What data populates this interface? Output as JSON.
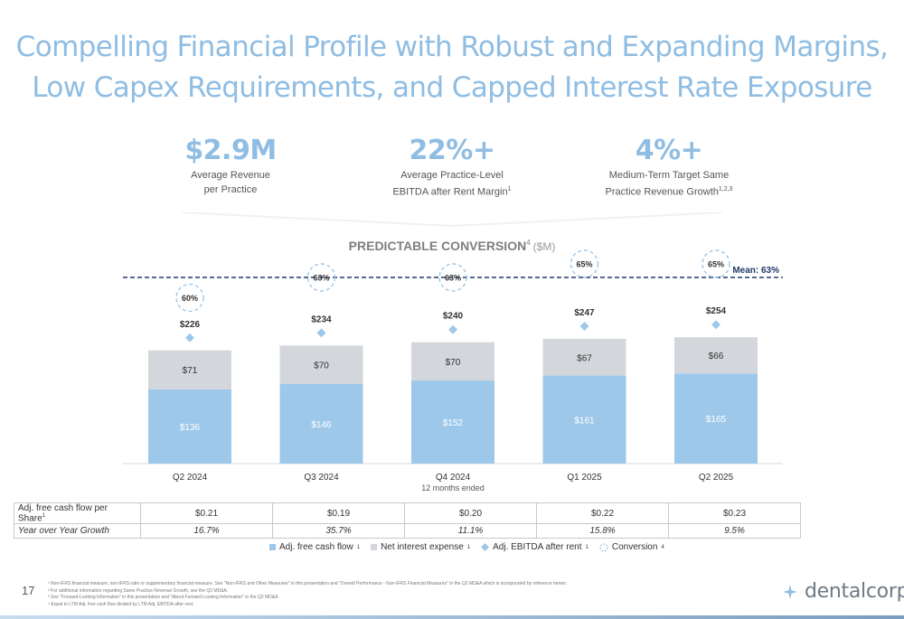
{
  "title_line1": "Compelling Financial Profile with Robust and Expanding Margins,",
  "title_line2": "Low Capex Requirements, and Capped Interest Rate Exposure",
  "kpis": [
    {
      "value": "$2.9M",
      "label_line1": "Average Revenue",
      "label_line2": "per Practice",
      "sup": ""
    },
    {
      "value": "22%+",
      "label_line1": "Average Practice-Level",
      "label_line2": "EBITDA after Rent Margin",
      "sup": "1"
    },
    {
      "value": "4%+",
      "label_line1": "Medium-Term Target Same",
      "label_line2": "Practice Revenue Growth",
      "sup": "1,2,3"
    }
  ],
  "colors": {
    "title": "#8fbde3",
    "bar_fcf": "#9ec8ea",
    "bar_interest": "#d3d7dc",
    "ebitda_marker": "#9ec8ea",
    "mean_line": "#1f3a68",
    "circle": "#9ec8ea"
  },
  "chart_data": {
    "type": "bar",
    "title": "PREDICTABLE CONVERSION",
    "title_sup": "4",
    "title_unit": "($M)",
    "categories": [
      "Q2 2024",
      "Q3 2024",
      "Q4 2024",
      "Q1 2025",
      "Q2 2025"
    ],
    "category_sub": "12 months ended",
    "series": [
      {
        "name": "Adj. free cash flow",
        "sup": "1",
        "values": [
          136,
          146,
          152,
          161,
          165
        ],
        "labels": [
          "$136",
          "$146",
          "$152",
          "$161",
          "$165"
        ]
      },
      {
        "name": "Net interest expense",
        "sup": "1",
        "values": [
          71,
          70,
          70,
          67,
          66
        ],
        "labels": [
          "$71",
          "$70",
          "$70",
          "$67",
          "$66"
        ]
      },
      {
        "name": "Adj. EBITDA after rent",
        "sup": "1",
        "values": [
          226,
          234,
          240,
          247,
          254
        ],
        "labels": [
          "$226",
          "$234",
          "$240",
          "$247",
          "$254"
        ]
      },
      {
        "name": "Conversion",
        "sup": "4",
        "values": [
          60,
          63,
          63,
          65,
          65
        ],
        "labels": [
          "60%",
          "63%",
          "63%",
          "65%",
          "65%"
        ]
      }
    ],
    "mean_label": "Mean: 63%",
    "mean_value": 63
  },
  "table": {
    "rows": [
      {
        "label": "Adj. free cash flow per Share",
        "sup": "1",
        "values": [
          "$0.21",
          "$0.19",
          "$0.20",
          "$0.22",
          "$0.23"
        ]
      },
      {
        "label": "Year over Year Growth",
        "sup": "",
        "values": [
          "16.7%",
          "35.7%",
          "11.1%",
          "15.8%",
          "9.5%"
        ]
      }
    ]
  },
  "footnotes": [
    "¹ Non-IFRS financial measure, non-IFRS ratio or supplementary financial measure. See \"Non-IFRS and Other Measures\" in this presentation and \"Overall Performance - Non-IFRS Financial Measures\" in the Q2 MD&A which is incorporated by reference herein.",
    "² For additional information regarding Same Practice Revenue Growth, see the Q2 MD&A.",
    "³ See \"Forward-Looking Information\" in this presentation and \"About Forward Looking Information\" in the Q2 MD&A.",
    "⁴ Equal to LTM Adj. free cash flow divided by LTM Adj. EBITDA after rent."
  ],
  "page_number": "17",
  "logo_text": "dentalcorp"
}
